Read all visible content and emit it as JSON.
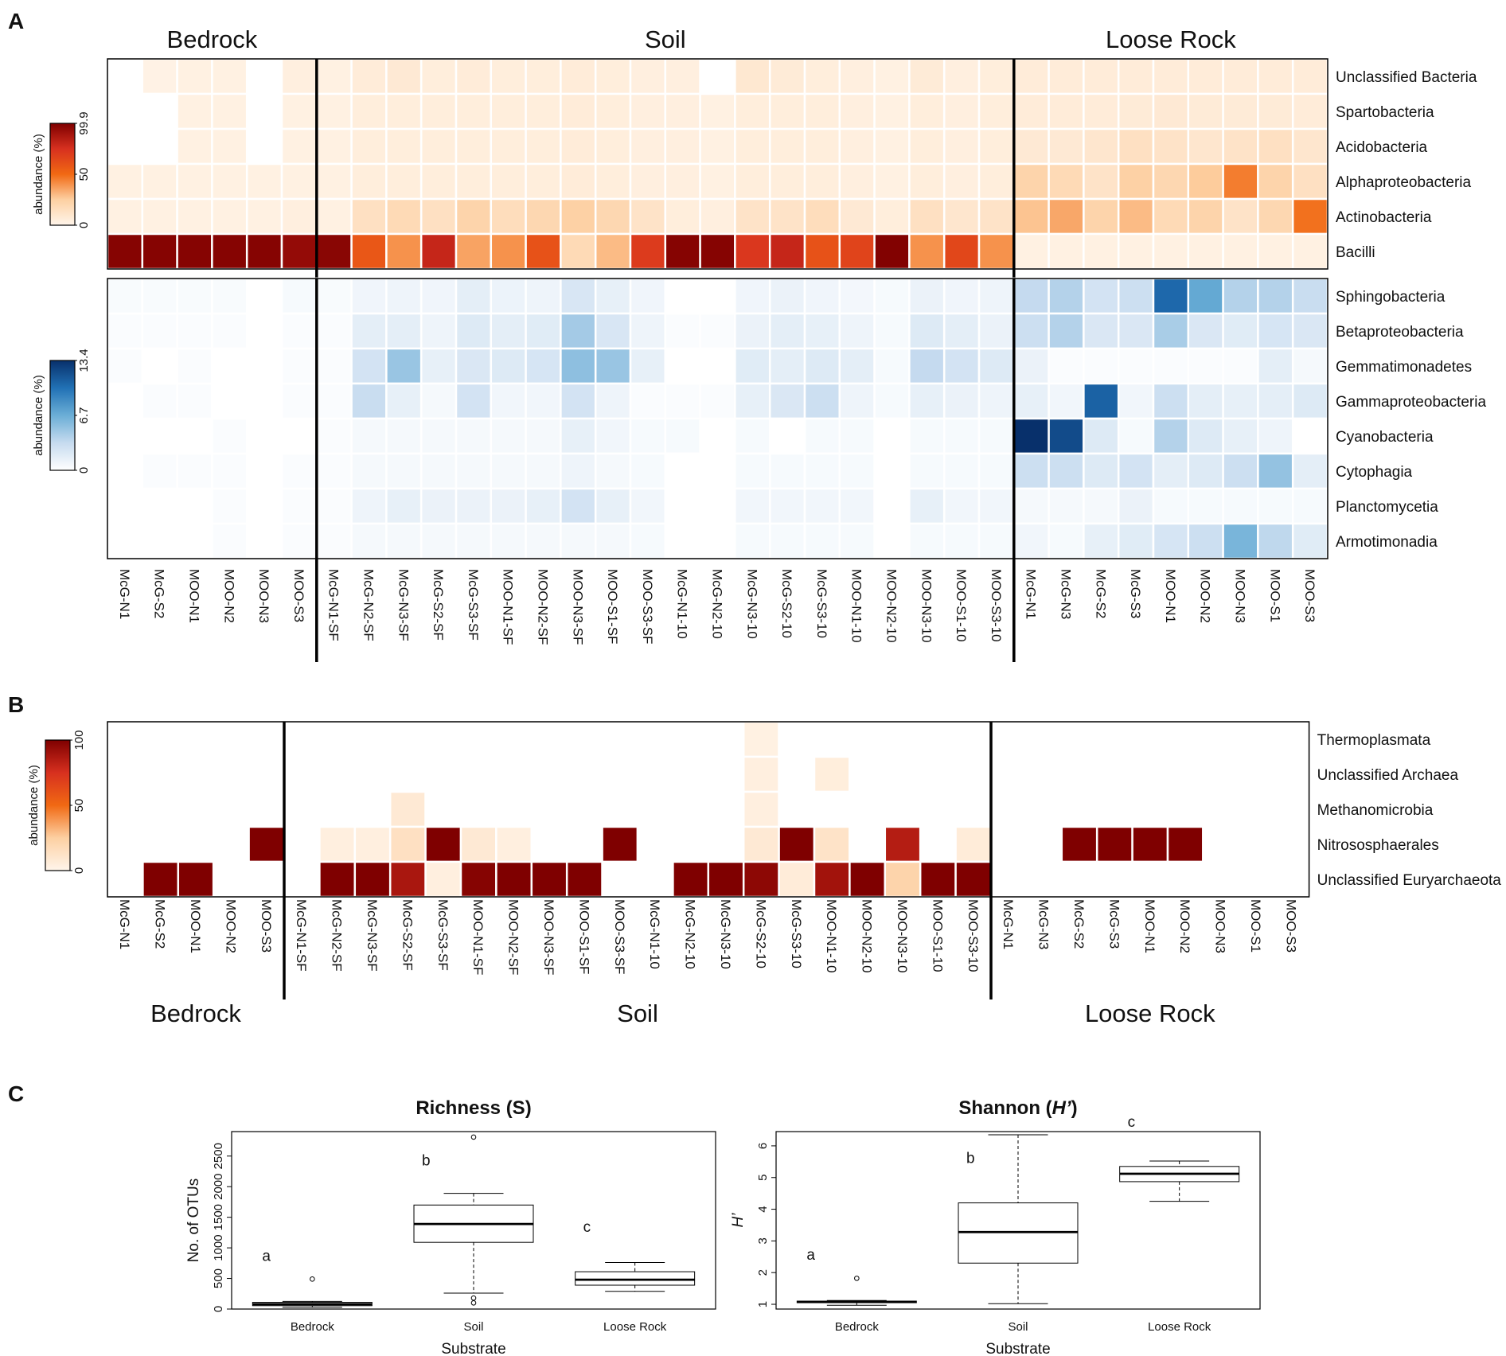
{
  "panel_letters": {
    "a": "A",
    "b": "B",
    "c": "C"
  },
  "chart_data": [
    {
      "type": "heatmap",
      "id": "A-top",
      "panel": "A",
      "palette": "reds",
      "colors": [
        "#fff5eb",
        "#fdd0a2",
        "#f16913",
        "#d7301f",
        "#7f0000"
      ],
      "legend_title": "abundance (%)",
      "legend_ticks": [
        "0",
        "50",
        "99.9"
      ],
      "range": [
        0,
        99.9
      ],
      "groups": [
        {
          "label": "Bedrock",
          "start": 0,
          "count": 6
        },
        {
          "label": "Soil",
          "start": 6,
          "count": 20
        },
        {
          "label": "Loose Rock",
          "start": 26,
          "count": 9
        }
      ],
      "columns": [
        "McG-N1",
        "McG-S2",
        "MOO-N1",
        "MOO-N2",
        "MOO-N3",
        "MOO-S3",
        "McG-N1-SF",
        "McG-N2-SF",
        "McG-N3-SF",
        "McG-S2-SF",
        "McG-S3-SF",
        "MOO-N1-SF",
        "MOO-N2-SF",
        "MOO-N3-SF",
        "MOO-S1-SF",
        "MOO-S3-SF",
        "McG-N1-10",
        "McG-N2-10",
        "McG-N3-10",
        "McG-S2-10",
        "McG-S3-10",
        "MOO-N1-10",
        "MOO-N2-10",
        "MOO-N3-10",
        "MOO-S1-10",
        "MOO-S3-10",
        "McG-N1",
        "McG-N3",
        "McG-S2",
        "McG-S3",
        "MOO-N1",
        "MOO-N2",
        "MOO-N3",
        "MOO-S1",
        "MOO-S3"
      ],
      "rows": [
        "Unclassified Bacteria",
        "Spartobacteria",
        "Acidobacteria",
        "Alphaproteobacteria",
        "Actinobacteria",
        "Bacilli"
      ],
      "values": [
        [
          0,
          2,
          3,
          3,
          0,
          4,
          3,
          6,
          8,
          5,
          6,
          5,
          5,
          6,
          5,
          4,
          4,
          0,
          9,
          7,
          5,
          4,
          3,
          7,
          4,
          5,
          6,
          6,
          6,
          6,
          6,
          6,
          6,
          6,
          6
        ],
        [
          0,
          0,
          3,
          3,
          0,
          3,
          3,
          5,
          5,
          5,
          5,
          5,
          5,
          6,
          5,
          4,
          4,
          3,
          5,
          5,
          5,
          4,
          3,
          5,
          4,
          5,
          6,
          6,
          6,
          7,
          8,
          7,
          7,
          7,
          6
        ],
        [
          0,
          0,
          3,
          3,
          0,
          3,
          3,
          5,
          5,
          5,
          5,
          5,
          5,
          6,
          5,
          4,
          4,
          3,
          5,
          5,
          5,
          4,
          3,
          5,
          4,
          5,
          8,
          8,
          10,
          14,
          12,
          10,
          12,
          14,
          10
        ],
        [
          3,
          3,
          3,
          3,
          3,
          3,
          3,
          5,
          5,
          5,
          5,
          5,
          5,
          6,
          5,
          4,
          4,
          3,
          5,
          5,
          5,
          4,
          3,
          5,
          4,
          5,
          22,
          18,
          12,
          24,
          20,
          26,
          45,
          22,
          14
        ],
        [
          3,
          3,
          3,
          3,
          3,
          4,
          3,
          14,
          18,
          14,
          22,
          16,
          20,
          24,
          20,
          12,
          5,
          4,
          12,
          12,
          16,
          8,
          5,
          14,
          10,
          12,
          28,
          35,
          22,
          30,
          18,
          22,
          12,
          20,
          48
        ],
        [
          98,
          98,
          98,
          98,
          98,
          94,
          97,
          58,
          40,
          80,
          36,
          40,
          60,
          18,
          30,
          70,
          98,
          98,
          72,
          80,
          60,
          66,
          99,
          40,
          65,
          40,
          3,
          3,
          3,
          3,
          3,
          3,
          3,
          3,
          3
        ]
      ]
    },
    {
      "type": "heatmap",
      "id": "A-bottom",
      "panel": "A",
      "palette": "blues",
      "colors": [
        "#ffffff",
        "#c6dbef",
        "#6baed6",
        "#2171b5",
        "#08306b"
      ],
      "legend_title": "abundance (%)",
      "legend_ticks": [
        "0",
        "6.7",
        "13.4"
      ],
      "range": [
        0,
        13.4
      ],
      "groups": [
        {
          "label": "Bedrock",
          "start": 0,
          "count": 6
        },
        {
          "label": "Soil",
          "start": 6,
          "count": 20
        },
        {
          "label": "Loose Rock",
          "start": 26,
          "count": 9
        }
      ],
      "rows": [
        "Sphingobacteria",
        "Betaproteobacteria",
        "Gemmatimonadetes",
        "Gammaproteobacteria",
        "Cyanobacteria",
        "Cytophagia",
        "Planctomycetia",
        "Armotimonadia"
      ],
      "values": [
        [
          0.4,
          0.4,
          0.4,
          0.4,
          0,
          0.5,
          0.4,
          0.9,
          1.0,
          0.9,
          1.6,
          1.1,
          1.0,
          2.3,
          1.4,
          0.9,
          0,
          0,
          0.9,
          1.2,
          0.9,
          0.7,
          0.5,
          1.2,
          0.9,
          1.0,
          3.4,
          4.0,
          2.6,
          3.0,
          10.5,
          7.0,
          4.0,
          4.0,
          3.2
        ],
        [
          0.3,
          0.3,
          0.3,
          0.3,
          0,
          0.3,
          0.3,
          1.6,
          1.6,
          1.0,
          2.0,
          1.6,
          1.8,
          4.6,
          2.3,
          1.0,
          0.3,
          0.3,
          1.2,
          1.6,
          1.4,
          1.0,
          0.5,
          2.0,
          1.6,
          1.2,
          3.0,
          4.0,
          2.2,
          2.2,
          4.4,
          2.2,
          1.8,
          2.4,
          2.2
        ],
        [
          0.3,
          0,
          0.3,
          0,
          0,
          0.3,
          0.3,
          2.6,
          5.0,
          1.4,
          2.2,
          2.0,
          2.4,
          5.4,
          5.0,
          1.4,
          0,
          0,
          1.8,
          1.6,
          2.0,
          1.6,
          0.5,
          3.4,
          2.6,
          2.0,
          1.2,
          0.3,
          0.3,
          0.3,
          0.3,
          0.3,
          0.3,
          1.6,
          0.6
        ],
        [
          0,
          0.3,
          0.3,
          0,
          0,
          0.3,
          0.3,
          3.2,
          1.4,
          0.6,
          2.6,
          0.8,
          0.8,
          2.6,
          1.0,
          0.3,
          0.3,
          0.3,
          1.4,
          2.2,
          3.0,
          1.0,
          0.5,
          1.4,
          1.2,
          1.0,
          1.4,
          0.8,
          10.8,
          0.8,
          3.0,
          1.6,
          1.4,
          1.6,
          2.0
        ],
        [
          0,
          0,
          0,
          0.3,
          0,
          0,
          0.3,
          0.6,
          0.6,
          0.6,
          0.6,
          0.6,
          0.6,
          1.4,
          0.8,
          0.5,
          0.5,
          0,
          0.5,
          0,
          0.5,
          0.5,
          0,
          0.5,
          0.5,
          0.5,
          13.4,
          12.0,
          2.0,
          0.5,
          4.0,
          2.0,
          1.4,
          1.0,
          0
        ],
        [
          0,
          0.3,
          0.3,
          0.3,
          0,
          0.3,
          0.3,
          0.6,
          0.6,
          0.6,
          0.6,
          0.6,
          0.6,
          1.0,
          0.6,
          0.5,
          0,
          0,
          0.5,
          0.5,
          0.5,
          0.5,
          0,
          0.5,
          0.5,
          0.5,
          3.0,
          3.0,
          2.0,
          2.6,
          1.6,
          2.0,
          3.0,
          5.2,
          1.6
        ],
        [
          0,
          0,
          0,
          0.3,
          0,
          0.3,
          0.3,
          1.0,
          1.4,
          1.2,
          1.2,
          1.2,
          1.4,
          2.6,
          1.4,
          0.8,
          0,
          0,
          0.8,
          0.8,
          0.8,
          0.8,
          0,
          1.4,
          0.8,
          0.8,
          0.6,
          0.6,
          0.6,
          1.2,
          0.5,
          0.5,
          0.5,
          0.5,
          0.5
        ],
        [
          0,
          0,
          0,
          0.3,
          0,
          0.3,
          0.3,
          0.6,
          0.6,
          0.6,
          0.6,
          0.6,
          0.6,
          0.6,
          0.6,
          0.5,
          0,
          0,
          0.5,
          0.5,
          0.5,
          0.5,
          0,
          0.5,
          0.5,
          0.5,
          0.8,
          0.5,
          1.4,
          1.8,
          2.4,
          3.0,
          6.2,
          3.6,
          1.8
        ]
      ]
    },
    {
      "type": "heatmap",
      "id": "B",
      "panel": "B",
      "palette": "reds",
      "colors": [
        "#fff5eb",
        "#fdd0a2",
        "#f16913",
        "#d7301f",
        "#7f0000"
      ],
      "legend_title": "abundance (%)",
      "legend_ticks": [
        "0",
        "50",
        "100"
      ],
      "range": [
        0,
        100
      ],
      "groups": [
        {
          "label": "Bedrock",
          "start": 0,
          "count": 5
        },
        {
          "label": "Soil",
          "start": 5,
          "count": 20
        },
        {
          "label": "Loose Rock",
          "start": 25,
          "count": 9
        }
      ],
      "columns": [
        "McG-N1",
        "McG-S2",
        "MOO-N1",
        "MOO-N2",
        "MOO-S3",
        "McG-N1-SF",
        "McG-N2-SF",
        "McG-N3-SF",
        "McG-S2-SF",
        "McG-S3-SF",
        "MOO-N1-SF",
        "MOO-N2-SF",
        "MOO-N3-SF",
        "MOO-S1-SF",
        "MOO-S3-SF",
        "McG-N1-10",
        "McG-N2-10",
        "McG-N3-10",
        "McG-S2-10",
        "McG-S3-10",
        "MOO-N1-10",
        "MOO-N2-10",
        "MOO-N3-10",
        "MOO-S1-10",
        "MOO-S3-10",
        "McG-N1",
        "McG-N3",
        "McG-S2",
        "McG-S3",
        "MOO-N1",
        "MOO-N2",
        "MOO-N3",
        "MOO-S1",
        "MOO-S3"
      ],
      "rows": [
        "Thermoplasmata",
        "Unclassified Archaea",
        "Methanomicrobia",
        "Nitrososphaerales",
        "Unclassified Euryarchaeota"
      ],
      "values": [
        [
          0,
          0,
          0,
          0,
          0,
          0,
          0,
          0,
          0,
          0,
          0,
          0,
          0,
          0,
          0,
          0,
          0,
          0,
          3,
          0,
          0,
          0,
          0,
          0,
          0,
          0,
          0,
          0,
          0,
          0,
          0,
          0,
          0,
          0
        ],
        [
          0,
          0,
          0,
          0,
          0,
          0,
          0,
          0,
          0,
          0,
          0,
          0,
          0,
          0,
          0,
          0,
          0,
          0,
          4,
          0,
          5,
          0,
          0,
          0,
          0,
          0,
          0,
          0,
          0,
          0,
          0,
          0,
          0,
          0
        ],
        [
          0,
          0,
          0,
          0,
          0,
          0,
          0,
          0,
          8,
          0,
          0,
          0,
          0,
          0,
          0,
          0,
          0,
          0,
          4,
          0,
          0,
          0,
          0,
          0,
          0,
          0,
          0,
          0,
          0,
          0,
          0,
          0,
          0,
          0
        ],
        [
          0,
          0,
          0,
          0,
          100,
          0,
          4,
          4,
          14,
          100,
          8,
          4,
          0,
          0,
          100,
          0,
          0,
          0,
          8,
          100,
          12,
          0,
          85,
          0,
          6,
          0,
          0,
          100,
          100,
          100,
          100,
          0,
          0,
          0
        ],
        [
          0,
          100,
          100,
          0,
          0,
          0,
          100,
          100,
          88,
          4,
          98,
          100,
          100,
          100,
          0,
          0,
          100,
          100,
          96,
          6,
          90,
          100,
          22,
          100,
          100,
          0,
          0,
          0,
          0,
          0,
          0,
          0,
          0,
          0
        ]
      ]
    },
    {
      "type": "box",
      "id": "C-richness",
      "panel": "C",
      "title": "Richness (S)",
      "xlabel": "Substrate",
      "ylabel": "No. of OTUs",
      "ylim": [
        0,
        2900
      ],
      "yticks": [
        0,
        500,
        1000,
        1500,
        2000,
        2500
      ],
      "categories": [
        "Bedrock",
        "Soil",
        "Loose   Rock"
      ],
      "boxes": [
        {
          "min": 30,
          "q1": 55,
          "median": 80,
          "q3": 110,
          "max": 125,
          "outliers": [
            490
          ],
          "letter": "a"
        },
        {
          "min": 260,
          "q1": 1090,
          "median": 1390,
          "q3": 1700,
          "max": 1890,
          "outliers": [
            2810,
            180,
            100
          ],
          "letter": "b"
        },
        {
          "min": 290,
          "q1": 390,
          "median": 480,
          "q3": 610,
          "max": 760,
          "outliers": [],
          "letter": "c"
        }
      ]
    },
    {
      "type": "box",
      "id": "C-shannon",
      "panel": "C",
      "title": "Shannon (",
      "title_italic": "H’",
      "title_end": ")",
      "xlabel": "Substrate",
      "ylabel": "H’",
      "ylim": [
        0.85,
        6.45
      ],
      "yticks": [
        1,
        2,
        3,
        4,
        5,
        6
      ],
      "categories": [
        "Bedrock",
        "Soil",
        "Loose   Rock"
      ],
      "boxes": [
        {
          "min": 0.97,
          "q1": 1.05,
          "median": 1.08,
          "q3": 1.1,
          "max": 1.12,
          "outliers": [
            1.82
          ],
          "letter": "a"
        },
        {
          "min": 1.02,
          "q1": 2.3,
          "median": 3.28,
          "q3": 4.2,
          "max": 6.35,
          "outliers": [],
          "letter": "b"
        },
        {
          "min": 4.25,
          "q1": 4.87,
          "median": 5.12,
          "q3": 5.35,
          "max": 5.52,
          "outliers": [],
          "letter": "c"
        }
      ]
    }
  ]
}
